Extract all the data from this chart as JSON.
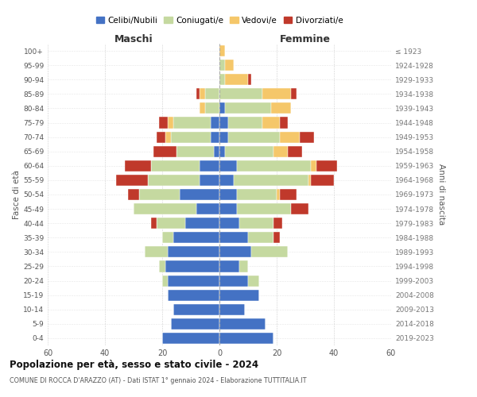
{
  "age_groups": [
    "0-4",
    "5-9",
    "10-14",
    "15-19",
    "20-24",
    "25-29",
    "30-34",
    "35-39",
    "40-44",
    "45-49",
    "50-54",
    "55-59",
    "60-64",
    "65-69",
    "70-74",
    "75-79",
    "80-84",
    "85-89",
    "90-94",
    "95-99",
    "100+"
  ],
  "birth_years": [
    "2019-2023",
    "2014-2018",
    "2009-2013",
    "2004-2008",
    "1999-2003",
    "1994-1998",
    "1989-1993",
    "1984-1988",
    "1979-1983",
    "1974-1978",
    "1969-1973",
    "1964-1968",
    "1959-1963",
    "1954-1958",
    "1949-1953",
    "1944-1948",
    "1939-1943",
    "1934-1938",
    "1929-1933",
    "1924-1928",
    "≤ 1923"
  ],
  "colors": {
    "celibe": "#4472c4",
    "coniugato": "#c5d9a0",
    "vedovo": "#f5c76a",
    "divorziato": "#c0392b"
  },
  "maschi": {
    "celibe": [
      20,
      17,
      16,
      18,
      18,
      19,
      18,
      16,
      12,
      8,
      14,
      7,
      7,
      2,
      3,
      3,
      0,
      0,
      0,
      0,
      0
    ],
    "coniugato": [
      0,
      0,
      0,
      0,
      2,
      2,
      8,
      4,
      10,
      22,
      14,
      18,
      17,
      13,
      14,
      13,
      5,
      5,
      0,
      0,
      0
    ],
    "vedovo": [
      0,
      0,
      0,
      0,
      0,
      0,
      0,
      0,
      0,
      0,
      0,
      0,
      0,
      0,
      2,
      2,
      2,
      2,
      0,
      0,
      0
    ],
    "divorziato": [
      0,
      0,
      0,
      0,
      0,
      0,
      0,
      0,
      2,
      0,
      4,
      11,
      9,
      8,
      3,
      3,
      0,
      1,
      0,
      0,
      0
    ]
  },
  "femmine": {
    "celibe": [
      19,
      16,
      9,
      14,
      10,
      7,
      11,
      10,
      7,
      6,
      6,
      5,
      6,
      2,
      3,
      3,
      2,
      0,
      0,
      0,
      0
    ],
    "coniugato": [
      0,
      0,
      0,
      0,
      4,
      3,
      13,
      9,
      12,
      19,
      14,
      26,
      26,
      17,
      18,
      12,
      16,
      15,
      2,
      2,
      0
    ],
    "vedovo": [
      0,
      0,
      0,
      0,
      0,
      0,
      0,
      0,
      0,
      0,
      1,
      1,
      2,
      5,
      7,
      6,
      7,
      10,
      8,
      3,
      2
    ],
    "divorziato": [
      0,
      0,
      0,
      0,
      0,
      0,
      0,
      2,
      3,
      6,
      6,
      8,
      7,
      5,
      5,
      3,
      0,
      2,
      1,
      0,
      0
    ]
  },
  "title": "Popolazione per età, sesso e stato civile - 2024",
  "subtitle": "COMUNE DI ROCCA D'ARAZZO (AT) - Dati ISTAT 1° gennaio 2024 - Elaborazione TUTTITALIA.IT",
  "xlabel_left": "Maschi",
  "xlabel_right": "Femmine",
  "ylabel_left": "Fasce di età",
  "ylabel_right": "Anni di nascita",
  "xlim": 60,
  "background_color": "#ffffff",
  "legend_labels": [
    "Celibi/Nubili",
    "Coniugati/e",
    "Vedovi/e",
    "Divorziati/e"
  ]
}
